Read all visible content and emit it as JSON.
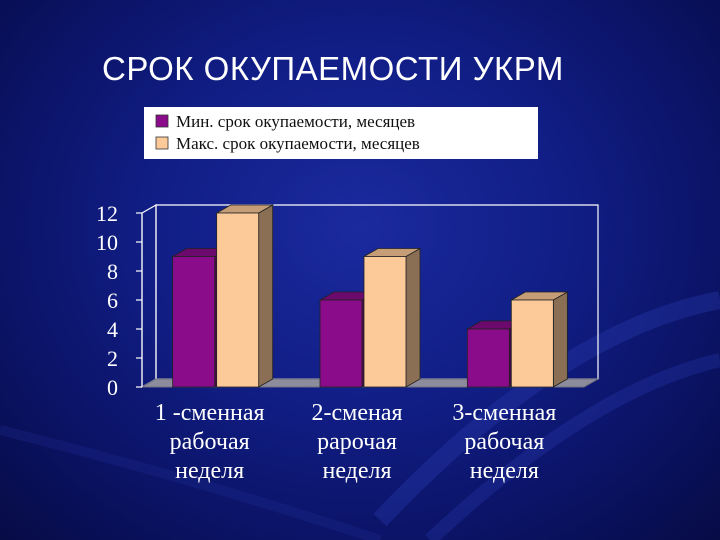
{
  "slide": {
    "title": "СРОК ОКУПАЕМОСТИ УКРМ"
  },
  "colors": {
    "background": "#111e86",
    "series_min": "#8a0c8a",
    "series_max": "#fcc999",
    "floor": "#8c8c9c",
    "text": "#ffffff",
    "legend_text": "#101010"
  },
  "chart_data": {
    "type": "bar",
    "title": "",
    "xlabel": "",
    "ylabel": "",
    "ylim": [
      0,
      12
    ],
    "yticks": [
      0,
      2,
      4,
      6,
      8,
      10,
      12
    ],
    "grid": false,
    "legend_position": "top",
    "categories": [
      [
        "1 -сменная",
        "рабочая",
        "неделя"
      ],
      [
        "2-сменая",
        "рарочая",
        "неделя"
      ],
      [
        "3-сменная",
        "рабочая",
        "неделя"
      ]
    ],
    "series": [
      {
        "name": "Мин. срок окупаемости, месяцев",
        "values": [
          9,
          6,
          4
        ],
        "color": "#8a0c8a"
      },
      {
        "name": "Макс. срок окупаемости, месяцев",
        "values": [
          12,
          9,
          6
        ],
        "color": "#fcc999"
      }
    ]
  }
}
